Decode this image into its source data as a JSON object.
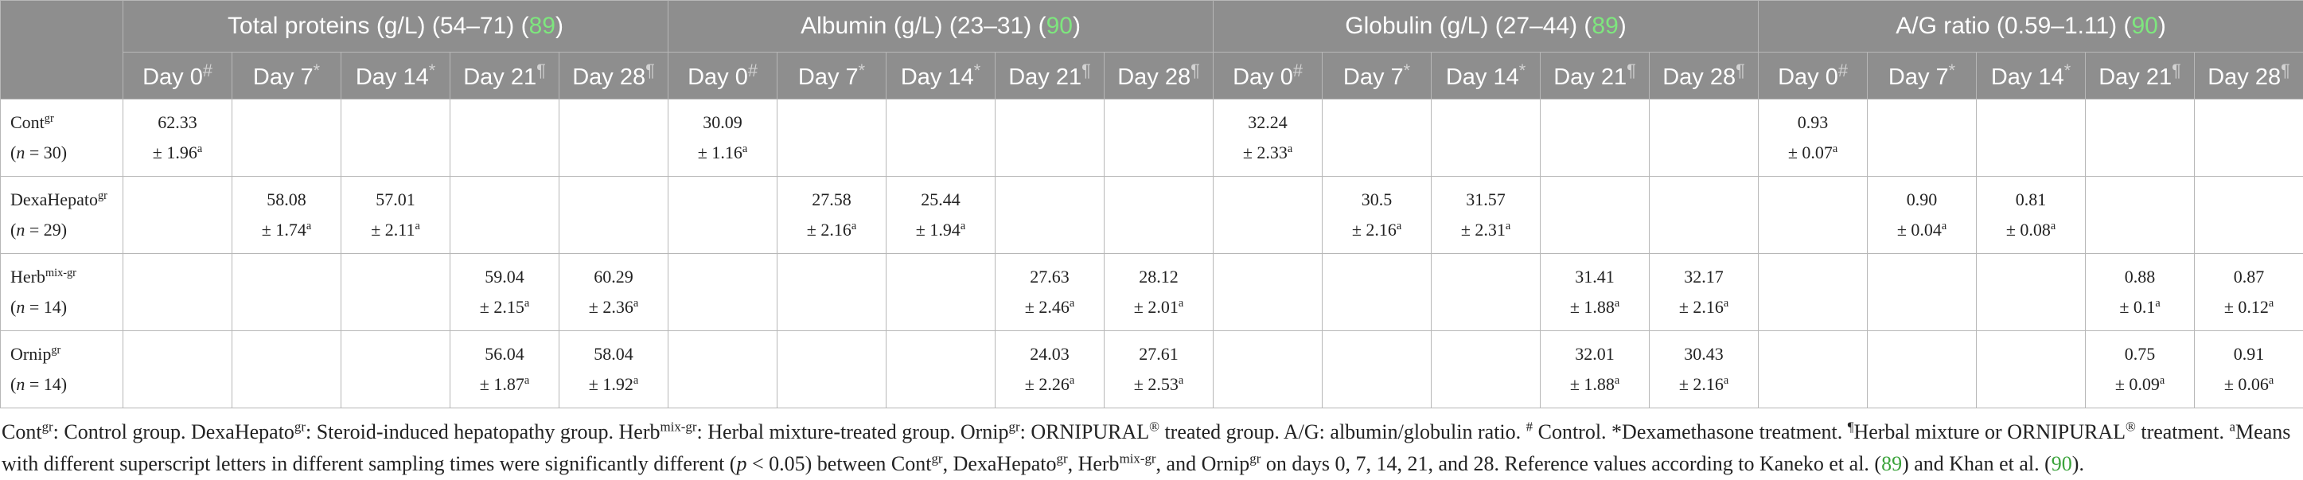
{
  "groups": [
    {
      "label": "Total proteins (g/L) (54–71) (",
      "ref": "89",
      "close": ")"
    },
    {
      "label": "Albumin (g/L) (23–31) (",
      "ref": "90",
      "close": ")"
    },
    {
      "label": "Globulin (g/L) (27–44) (",
      "ref": "89",
      "close": ")"
    },
    {
      "label": "A/G ratio (0.59–1.11) (",
      "ref": "90",
      "close": ")"
    }
  ],
  "days": [
    {
      "label": "Day 0",
      "mark": "#"
    },
    {
      "label": "Day 7",
      "mark": "*"
    },
    {
      "label": "Day 14",
      "mark": "*"
    },
    {
      "label": "Day 21",
      "mark": "¶"
    },
    {
      "label": "Day 28",
      "mark": "¶"
    }
  ],
  "rows": [
    {
      "name": "Cont",
      "sup": "gr",
      "n_label": "n",
      "n_value": " = 30",
      "cells": [
        [
          "62.33",
          "± 1.96",
          "a"
        ],
        null,
        null,
        null,
        null,
        [
          "30.09",
          "± 1.16",
          "a"
        ],
        null,
        null,
        null,
        null,
        [
          "32.24",
          "± 2.33",
          "a"
        ],
        null,
        null,
        null,
        null,
        [
          "0.93",
          "± 0.07",
          "a"
        ],
        null,
        null,
        null,
        null
      ]
    },
    {
      "name": "DexaHepato",
      "sup": "gr",
      "n_label": "n",
      "n_value": " = 29",
      "cells": [
        null,
        [
          "58.08",
          "± 1.74",
          "a"
        ],
        [
          "57.01",
          "± 2.11",
          "a"
        ],
        null,
        null,
        null,
        [
          "27.58",
          "± 2.16",
          "a"
        ],
        [
          "25.44",
          "± 1.94",
          "a"
        ],
        null,
        null,
        null,
        [
          "30.5",
          "± 2.16",
          "a"
        ],
        [
          "31.57",
          "± 2.31",
          "a"
        ],
        null,
        null,
        null,
        [
          "0.90",
          "± 0.04",
          "a"
        ],
        [
          "0.81",
          "± 0.08",
          "a"
        ],
        null,
        null
      ]
    },
    {
      "name": "Herb",
      "sup": "mix-gr",
      "n_label": "n",
      "n_value": " = 14",
      "cells": [
        null,
        null,
        null,
        [
          "59.04",
          "± 2.15",
          "a"
        ],
        [
          "60.29",
          "± 2.36",
          "a"
        ],
        null,
        null,
        null,
        [
          "27.63",
          "± 2.46",
          "a"
        ],
        [
          "28.12",
          "± 2.01",
          "a"
        ],
        null,
        null,
        null,
        [
          "31.41",
          "± 1.88",
          "a"
        ],
        [
          "32.17",
          "± 2.16",
          "a"
        ],
        null,
        null,
        null,
        [
          "0.88",
          "± 0.1",
          "a"
        ],
        [
          "0.87",
          "± 0.12",
          "a"
        ]
      ]
    },
    {
      "name": "Ornip",
      "sup": "gr",
      "n_label": "n",
      "n_value": " = 14",
      "cells": [
        null,
        null,
        null,
        [
          "56.04",
          "± 1.87",
          "a"
        ],
        [
          "58.04",
          "± 1.92",
          "a"
        ],
        null,
        null,
        null,
        [
          "24.03",
          "± 2.26",
          "a"
        ],
        [
          "27.61",
          "± 2.53",
          "a"
        ],
        null,
        null,
        null,
        [
          "32.01",
          "± 1.88",
          "a"
        ],
        [
          "30.43",
          "± 2.16",
          "a"
        ],
        null,
        null,
        null,
        [
          "0.75",
          "± 0.09",
          "a"
        ],
        [
          "0.91",
          "± 0.06",
          "a"
        ]
      ]
    }
  ],
  "footnote": [
    {
      "t": "Cont"
    },
    {
      "t": "gr",
      "sup": true
    },
    {
      "t": ": Control group. DexaHepato"
    },
    {
      "t": "gr",
      "sup": true
    },
    {
      "t": ": Steroid-induced hepatopathy group. Herb"
    },
    {
      "t": "mix-gr",
      "sup": true
    },
    {
      "t": ": Herbal mixture-treated group. Ornip"
    },
    {
      "t": "gr",
      "sup": true
    },
    {
      "t": ": ORNIPURAL"
    },
    {
      "t": "®",
      "sup": true
    },
    {
      "t": " treated group. A/G: albumin/globulin ratio. "
    },
    {
      "t": "#",
      "sup": true
    },
    {
      "t": " Control. *Dexamethasone treatment. "
    },
    {
      "t": "¶",
      "sup": true
    },
    {
      "t": "Herbal mixture or ORNIPURAL"
    },
    {
      "t": "®",
      "sup": true
    },
    {
      "t": " treatment. "
    },
    {
      "t": "a",
      "sup": true
    },
    {
      "t": "Means with different superscript letters in different sampling times were significantly different ("
    },
    {
      "t": "p",
      "it": true
    },
    {
      "t": " < 0.05) between Cont"
    },
    {
      "t": "gr",
      "sup": true
    },
    {
      "t": ", DexaHepato"
    },
    {
      "t": "gr",
      "sup": true
    },
    {
      "t": ", Herb"
    },
    {
      "t": "mix-gr",
      "sup": true
    },
    {
      "t": ", and Ornip"
    },
    {
      "t": "gr",
      "sup": true
    },
    {
      "t": " on days 0, 7, 14, 21, and 28. Reference values according to Kaneko et al. ("
    },
    {
      "t": "89",
      "ref": true
    },
    {
      "t": ") and Khan et al. ("
    },
    {
      "t": "90",
      "ref": true
    },
    {
      "t": ")."
    }
  ]
}
